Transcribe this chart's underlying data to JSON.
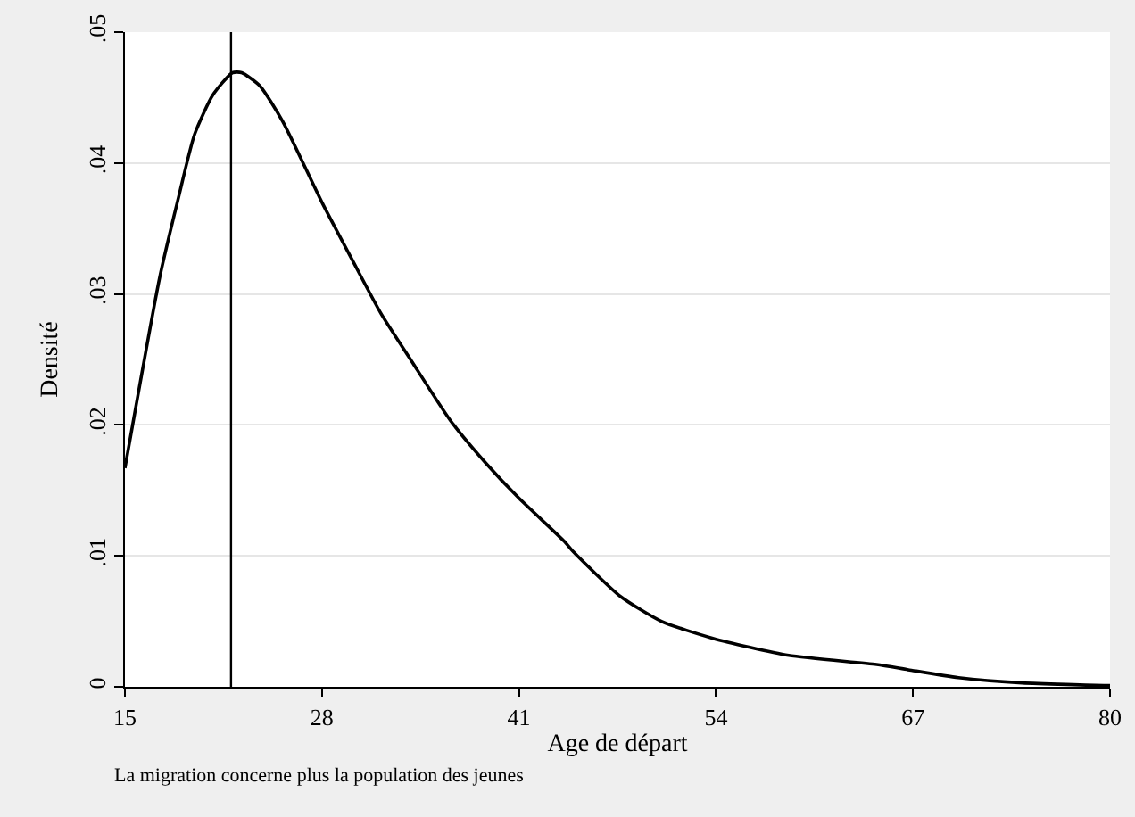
{
  "chart_data": {
    "type": "line",
    "xlabel": "Age de départ",
    "ylabel": "Densité",
    "annotations": [
      "La migration concerne plus la population des jeunes"
    ],
    "series": [
      {
        "color": "#000000",
        "x": [
          15,
          17.3,
          18.5,
          19.6,
          20.8,
          22.1,
          22.7,
          23.9,
          25.4,
          28,
          30,
          31.9,
          33.9,
          36.5,
          38.8,
          41,
          44,
          44.6,
          47.7,
          50.4,
          53.8,
          58.8,
          64.6,
          66.7,
          70,
          74.2,
          79.6,
          80
        ],
        "values": [
          0.0167,
          0.0313,
          0.0372,
          0.0422,
          0.0452,
          0.0469,
          0.0469,
          0.0459,
          0.0432,
          0.037,
          0.0326,
          0.0285,
          0.0249,
          0.0203,
          0.0171,
          0.0144,
          0.0111,
          0.0103,
          0.0069,
          0.005,
          0.0037,
          0.0024,
          0.0017,
          0.0013,
          0.0007,
          0.0003,
          0.0001,
          0.0001
        ]
      }
    ],
    "xlim": [
      15,
      80
    ],
    "xticks": [
      15,
      28,
      41,
      54,
      67,
      80
    ],
    "ylim": [
      0,
      0.05
    ],
    "yticks": [
      {
        "value": 0,
        "label": "0"
      },
      {
        "value": 0.01,
        "label": ".01"
      },
      {
        "value": 0.02,
        "label": ".02"
      },
      {
        "value": 0.03,
        "label": ".03"
      },
      {
        "value": 0.04,
        "label": ".04"
      },
      {
        "value": 0.05,
        "label": ".05"
      }
    ],
    "ref_lines": [
      {
        "axis": "x",
        "value": 22,
        "color": "#000000"
      }
    ],
    "grid": "y",
    "marker": "none",
    "line_style": "solid"
  }
}
